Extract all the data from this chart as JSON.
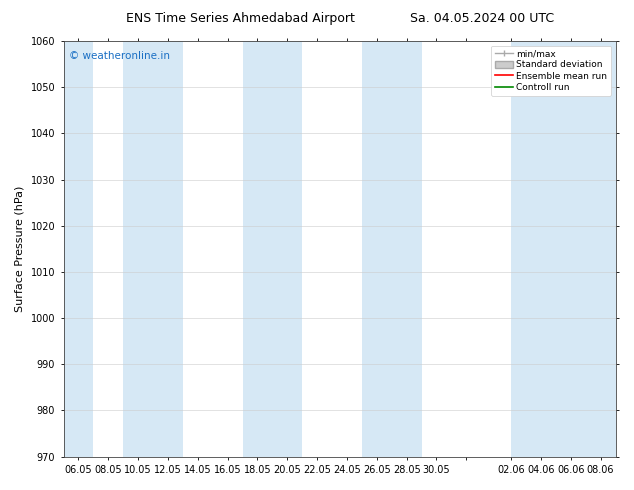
{
  "title_left": "ENS Time Series Ahmedabad Airport",
  "title_right": "Sa. 04.05.2024 00 UTC",
  "ylabel": "Surface Pressure (hPa)",
  "ylim": [
    970,
    1060
  ],
  "yticks": [
    970,
    980,
    990,
    1000,
    1010,
    1020,
    1030,
    1040,
    1050,
    1060
  ],
  "xtick_labels": [
    "06.05",
    "08.05",
    "10.05",
    "12.05",
    "14.05",
    "16.05",
    "18.05",
    "20.05",
    "22.05",
    "24.05",
    "26.05",
    "28.05",
    "30.05",
    "",
    "02.06",
    "04.06",
    "06.06",
    "08.06"
  ],
  "watermark": "© weatheronline.in",
  "watermark_color": "#1a6fc4",
  "background_color": "#ffffff",
  "plot_bg_color": "#ffffff",
  "shaded_band_color": "#d6e8f5",
  "shaded_band_alpha": 1.0,
  "legend_labels": [
    "min/max",
    "Standard deviation",
    "Ensemble mean run",
    "Controll run"
  ],
  "title_fontsize": 9,
  "axis_fontsize": 8,
  "tick_fontsize": 7,
  "font_family": "DejaVu Sans"
}
